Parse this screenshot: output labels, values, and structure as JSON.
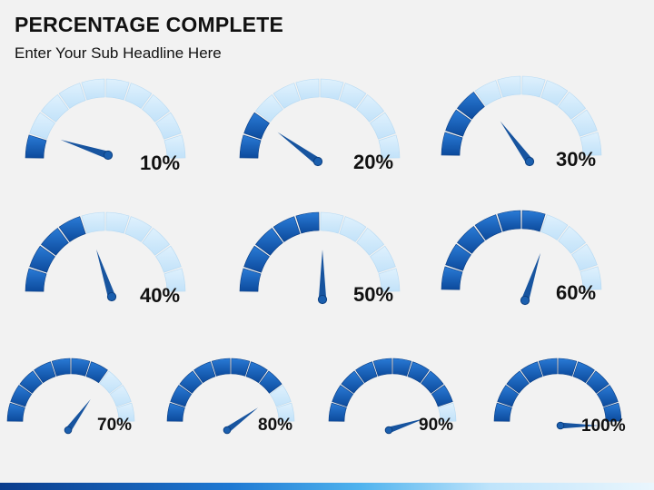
{
  "header": {
    "title": "PERCENTAGE COMPLETE",
    "subtitle": "Enter Your Sub Headline Here"
  },
  "colors": {
    "filled_dark": "#0c4a9c",
    "filled_light": "#2a7bd6",
    "empty": "#cfe9fb",
    "needle": "#17549f"
  },
  "gauges": [
    {
      "label": "10%",
      "value": 0.1
    },
    {
      "label": "20%",
      "value": 0.2
    },
    {
      "label": "30%",
      "value": 0.3
    },
    {
      "label": "40%",
      "value": 0.4
    },
    {
      "label": "50%",
      "value": 0.5
    },
    {
      "label": "60%",
      "value": 0.6
    },
    {
      "label": "70%",
      "value": 0.7
    },
    {
      "label": "80%",
      "value": 0.8
    },
    {
      "label": "90%",
      "value": 0.9
    },
    {
      "label": "100%",
      "value": 1.0
    }
  ]
}
